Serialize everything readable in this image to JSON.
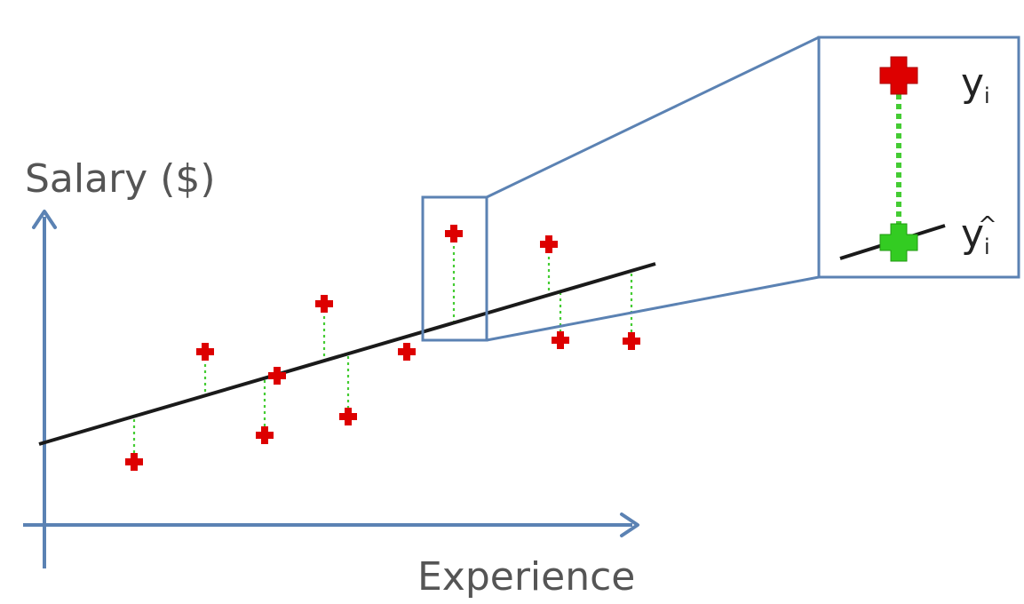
{
  "axes": {
    "y_label": "Salary ($)",
    "x_label": "Experience"
  },
  "zoom_box": {
    "actual_label": {
      "base": "y",
      "sub": "i"
    },
    "predicted_label": {
      "base": "y",
      "sub": "i",
      "hat": "^"
    }
  },
  "colors": {
    "axis": "#5b82b3",
    "regression_line": "#1a1a1a",
    "actual_point": "#dd0000",
    "predicted_point": "#33cc22",
    "residual": "#44cc33",
    "zoom_frame": "#5b82b3"
  }
}
